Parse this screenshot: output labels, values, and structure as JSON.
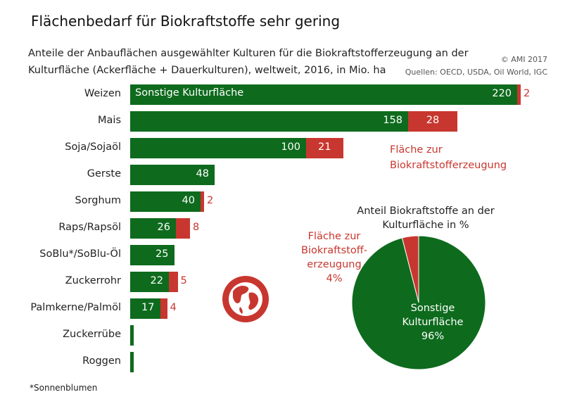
{
  "header": {
    "title": "Flächenbedarf für Biokraftstoffe sehr gering",
    "subtitle_line1": "Anteile der Anbauflächen ausgewählter Kulturen für die Biokraftstofferzeugung an der",
    "subtitle_line2": "Kulturfläche (Ackerfläche + Dauerkulturen), weltweit, 2016, in Mio. ha",
    "copyright": "© AMI 2017",
    "sources": "Quellen: OECD, USDA, Oil World, IGC",
    "footnote": "*Sonnenblumen"
  },
  "colors": {
    "green": "#0e6b1d",
    "red": "#c8372f"
  },
  "icon": "globe-icon",
  "chart_data": [
    {
      "type": "bar",
      "orientation": "horizontal",
      "stacked": true,
      "categories": [
        "Weizen",
        "Mais",
        "Soja/Sojaöl",
        "Gerste",
        "Sorghum",
        "Raps/Rapsöl",
        "SoBlu*/SoBlu-Öl",
        "Zuckerrohr",
        "Palmkerne/Palmöl",
        "Zuckerrübe",
        "Roggen"
      ],
      "series": [
        {
          "name": "Sonstige Kulturfläche",
          "color": "#0e6b1d",
          "values": [
            220,
            158,
            100,
            48,
            40,
            26,
            25,
            22,
            17,
            2,
            2
          ],
          "labels": [
            "220",
            "158",
            "100",
            "48",
            "40",
            "26",
            "25",
            "22",
            "17",
            "",
            ""
          ]
        },
        {
          "name": "Fläche zur Biokraftstofferzeugung",
          "color": "#c8372f",
          "values": [
            2,
            28,
            21,
            0,
            2,
            8,
            0,
            5,
            4,
            0,
            0
          ],
          "labels": [
            "2",
            "28",
            "21",
            "",
            "2",
            "8",
            "",
            "5",
            "4",
            "",
            ""
          ]
        }
      ],
      "legend_in_bar": "Sonstige Kulturfläche",
      "legend_red_line1": "Fläche zur",
      "legend_red_line2": "Biokraftstofferzeugung"
    },
    {
      "type": "pie",
      "title_line1": "Anteil Biokraftstoffe an der",
      "title_line2": "Kulturfläche in %",
      "slices": [
        {
          "name": "Sonstige Kulturfläche",
          "value": 96,
          "label": "96%",
          "color": "#0e6b1d"
        },
        {
          "name": "Fläche zur Biokraftstofferzeugung",
          "value": 4,
          "label": "4%",
          "color": "#c8372f"
        }
      ],
      "green_line1": "Sonstige",
      "green_line2": "Kulturfläche",
      "red_line1": "Fläche zur",
      "red_line2": "Biokraftstoff-",
      "red_line3": "erzeugung"
    }
  ]
}
